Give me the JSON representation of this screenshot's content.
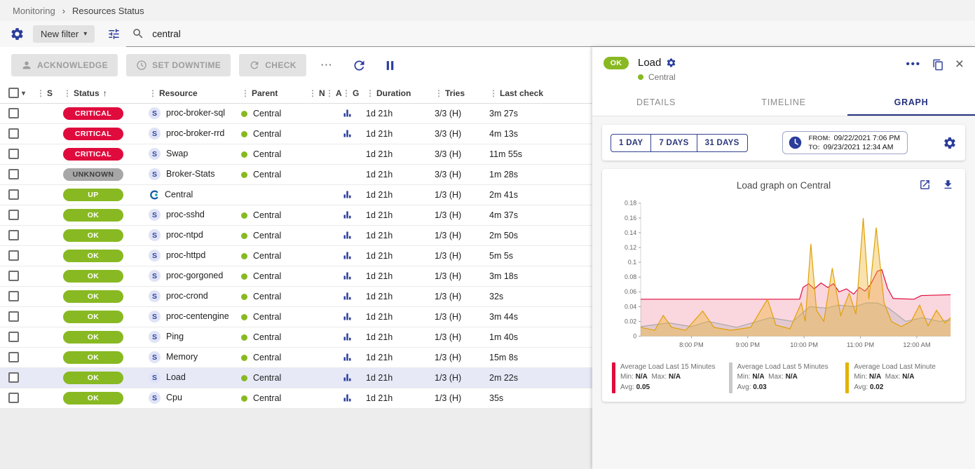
{
  "breadcrumb": {
    "items": [
      "Monitoring",
      "Resources Status"
    ],
    "separator": "›"
  },
  "filter_bar": {
    "new_filter_label": "New filter",
    "search_value": "central"
  },
  "toolbar": {
    "acknowledge_label": "ACKNOWLEDGE",
    "set_downtime_label": "SET DOWNTIME",
    "check_label": "CHECK",
    "more_label": "⋯"
  },
  "table": {
    "columns": [
      "S",
      "Status",
      "Resource",
      "Parent",
      "N",
      "A",
      "G",
      "Duration",
      "Tries",
      "Last check"
    ],
    "service_icon_label": "S",
    "rows": [
      {
        "severity": "critical",
        "status": "CRITICAL",
        "kind": "service",
        "resource": "proc-broker-sql",
        "parent": "Central",
        "graph": true,
        "duration": "1d 21h",
        "tries": "3/3 (H)",
        "last_check": "3m 27s",
        "selected": false
      },
      {
        "severity": "critical",
        "status": "CRITICAL",
        "kind": "service",
        "resource": "proc-broker-rrd",
        "parent": "Central",
        "graph": true,
        "duration": "1d 21h",
        "tries": "3/3 (H)",
        "last_check": "4m 13s",
        "selected": false
      },
      {
        "severity": "critical",
        "status": "CRITICAL",
        "kind": "service",
        "resource": "Swap",
        "parent": "Central",
        "graph": false,
        "duration": "1d 21h",
        "tries": "3/3 (H)",
        "last_check": "11m 55s",
        "selected": false
      },
      {
        "severity": "unknown",
        "status": "UNKNOWN",
        "kind": "service",
        "resource": "Broker-Stats",
        "parent": "Central",
        "graph": false,
        "duration": "1d 21h",
        "tries": "3/3 (H)",
        "last_check": "1m 28s",
        "selected": false
      },
      {
        "severity": "success",
        "status": "UP",
        "kind": "host",
        "resource": "Central",
        "parent": "",
        "graph": true,
        "duration": "1d 21h",
        "tries": "1/3 (H)",
        "last_check": "2m 41s",
        "selected": false
      },
      {
        "severity": "success",
        "status": "OK",
        "kind": "service",
        "resource": "proc-sshd",
        "parent": "Central",
        "graph": true,
        "duration": "1d 21h",
        "tries": "1/3 (H)",
        "last_check": "4m 37s",
        "selected": false
      },
      {
        "severity": "success",
        "status": "OK",
        "kind": "service",
        "resource": "proc-ntpd",
        "parent": "Central",
        "graph": true,
        "duration": "1d 21h",
        "tries": "1/3 (H)",
        "last_check": "2m 50s",
        "selected": false
      },
      {
        "severity": "success",
        "status": "OK",
        "kind": "service",
        "resource": "proc-httpd",
        "parent": "Central",
        "graph": true,
        "duration": "1d 21h",
        "tries": "1/3 (H)",
        "last_check": "5m 5s",
        "selected": false
      },
      {
        "severity": "success",
        "status": "OK",
        "kind": "service",
        "resource": "proc-gorgoned",
        "parent": "Central",
        "graph": true,
        "duration": "1d 21h",
        "tries": "1/3 (H)",
        "last_check": "3m 18s",
        "selected": false
      },
      {
        "severity": "success",
        "status": "OK",
        "kind": "service",
        "resource": "proc-crond",
        "parent": "Central",
        "graph": true,
        "duration": "1d 21h",
        "tries": "1/3 (H)",
        "last_check": "32s",
        "selected": false
      },
      {
        "severity": "success",
        "status": "OK",
        "kind": "service",
        "resource": "proc-centengine",
        "parent": "Central",
        "graph": true,
        "duration": "1d 21h",
        "tries": "1/3 (H)",
        "last_check": "3m 44s",
        "selected": false
      },
      {
        "severity": "success",
        "status": "OK",
        "kind": "service",
        "resource": "Ping",
        "parent": "Central",
        "graph": true,
        "duration": "1d 21h",
        "tries": "1/3 (H)",
        "last_check": "1m 40s",
        "selected": false
      },
      {
        "severity": "success",
        "status": "OK",
        "kind": "service",
        "resource": "Memory",
        "parent": "Central",
        "graph": true,
        "duration": "1d 21h",
        "tries": "1/3 (H)",
        "last_check": "15m 8s",
        "selected": false
      },
      {
        "severity": "success",
        "status": "OK",
        "kind": "service",
        "resource": "Load",
        "parent": "Central",
        "graph": true,
        "duration": "1d 21h",
        "tries": "1/3 (H)",
        "last_check": "2m 22s",
        "selected": true
      },
      {
        "severity": "success",
        "status": "OK",
        "kind": "service",
        "resource": "Cpu",
        "parent": "Central",
        "graph": true,
        "duration": "1d 21h",
        "tries": "1/3 (H)",
        "last_check": "35s",
        "selected": false
      }
    ]
  },
  "panel": {
    "status": "OK",
    "title": "Load",
    "subtitle": "Central",
    "tabs": [
      "DETAILS",
      "TIMELINE",
      "GRAPH"
    ],
    "active_tab": "GRAPH",
    "periods": [
      "1 DAY",
      "7 DAYS",
      "31 DAYS"
    ],
    "from_label": "FROM:",
    "from_value": "09/22/2021 7:06 PM",
    "to_label": "TO:",
    "to_value": "09/23/2021 12:34 AM",
    "graph_title": "Load graph on Central",
    "legend_labels": {
      "min": "Min:",
      "max": "Max:",
      "avg": "Avg:"
    },
    "legend": [
      {
        "name": "Average Load Last 15 Minutes",
        "min": "N/A",
        "max": "N/A",
        "avg": "0.05",
        "color": "#e00b3d"
      },
      {
        "name": "Average Load Last 5 Minutes",
        "min": "N/A",
        "max": "N/A",
        "avg": "0.03",
        "color": "#c9c9c9"
      },
      {
        "name": "Average Load Last Minute",
        "min": "N/A",
        "max": "N/A",
        "avg": "0.02",
        "color": "#e3b202"
      }
    ]
  },
  "chart_data": {
    "type": "area",
    "title": "Load graph on Central",
    "xlabel": "",
    "ylabel": "",
    "xlim": [
      19.1,
      24.6
    ],
    "ylim": [
      0,
      0.18
    ],
    "x_tick_values": [
      20,
      21,
      22,
      23,
      24
    ],
    "x_tick_labels": [
      "8:00 PM",
      "9:00 PM",
      "10:00 PM",
      "11:00 PM",
      "12:00 AM"
    ],
    "y_ticks": [
      0,
      0.02,
      0.04,
      0.06,
      0.08,
      0.1,
      0.12,
      0.14,
      0.16,
      0.18
    ],
    "legend_position": "bottom",
    "grid": false,
    "series": [
      {
        "name": "Average Load Last 15 Minutes",
        "color": "#e00b3d",
        "fill": "rgba(224,11,61,0.17)",
        "points": [
          [
            19.1,
            0.05
          ],
          [
            21.92,
            0.05
          ],
          [
            21.98,
            0.066
          ],
          [
            22.08,
            0.071
          ],
          [
            22.18,
            0.064
          ],
          [
            22.3,
            0.072
          ],
          [
            22.42,
            0.066
          ],
          [
            22.52,
            0.071
          ],
          [
            22.62,
            0.06
          ],
          [
            22.75,
            0.064
          ],
          [
            22.88,
            0.057
          ],
          [
            22.98,
            0.066
          ],
          [
            23.08,
            0.061
          ],
          [
            23.18,
            0.07
          ],
          [
            23.3,
            0.088
          ],
          [
            23.38,
            0.09
          ],
          [
            23.48,
            0.065
          ],
          [
            23.58,
            0.051
          ],
          [
            23.95,
            0.05
          ],
          [
            24.08,
            0.055
          ],
          [
            24.6,
            0.056
          ]
        ]
      },
      {
        "name": "Average Load Last 5 Minutes",
        "color": "#a8a8a8",
        "fill": "rgba(170,170,170,0.28)",
        "points": [
          [
            19.1,
            0.013
          ],
          [
            19.6,
            0.018
          ],
          [
            20.0,
            0.013
          ],
          [
            20.3,
            0.02
          ],
          [
            20.8,
            0.012
          ],
          [
            21.4,
            0.025
          ],
          [
            21.8,
            0.02
          ],
          [
            22.1,
            0.04
          ],
          [
            22.4,
            0.038
          ],
          [
            22.6,
            0.042
          ],
          [
            22.9,
            0.04
          ],
          [
            23.1,
            0.045
          ],
          [
            23.3,
            0.045
          ],
          [
            23.5,
            0.038
          ],
          [
            23.8,
            0.02
          ],
          [
            24.1,
            0.025
          ],
          [
            24.4,
            0.02
          ],
          [
            24.6,
            0.022
          ]
        ]
      },
      {
        "name": "Average Load Last Minute",
        "color": "#dfa006",
        "fill": "rgba(238,180,40,0.38)",
        "points": [
          [
            19.1,
            0.012
          ],
          [
            19.35,
            0.008
          ],
          [
            19.5,
            0.028
          ],
          [
            19.65,
            0.012
          ],
          [
            19.9,
            0.008
          ],
          [
            20.2,
            0.034
          ],
          [
            20.4,
            0.012
          ],
          [
            20.7,
            0.008
          ],
          [
            21.05,
            0.012
          ],
          [
            21.35,
            0.05
          ],
          [
            21.5,
            0.015
          ],
          [
            21.75,
            0.01
          ],
          [
            21.95,
            0.045
          ],
          [
            22.02,
            0.02
          ],
          [
            22.12,
            0.125
          ],
          [
            22.22,
            0.035
          ],
          [
            22.35,
            0.02
          ],
          [
            22.5,
            0.092
          ],
          [
            22.65,
            0.028
          ],
          [
            22.8,
            0.058
          ],
          [
            22.92,
            0.03
          ],
          [
            23.05,
            0.16
          ],
          [
            23.15,
            0.05
          ],
          [
            23.28,
            0.147
          ],
          [
            23.42,
            0.045
          ],
          [
            23.55,
            0.02
          ],
          [
            23.72,
            0.013
          ],
          [
            23.9,
            0.02
          ],
          [
            24.05,
            0.042
          ],
          [
            24.2,
            0.014
          ],
          [
            24.35,
            0.035
          ],
          [
            24.5,
            0.018
          ],
          [
            24.6,
            0.025
          ]
        ]
      }
    ]
  },
  "colors": {
    "accent": "#2b3d9b",
    "critical": "#e00b3d",
    "success": "#88b922",
    "unknown": "#a7a7a7",
    "selected_row": "#e7e9f7"
  }
}
